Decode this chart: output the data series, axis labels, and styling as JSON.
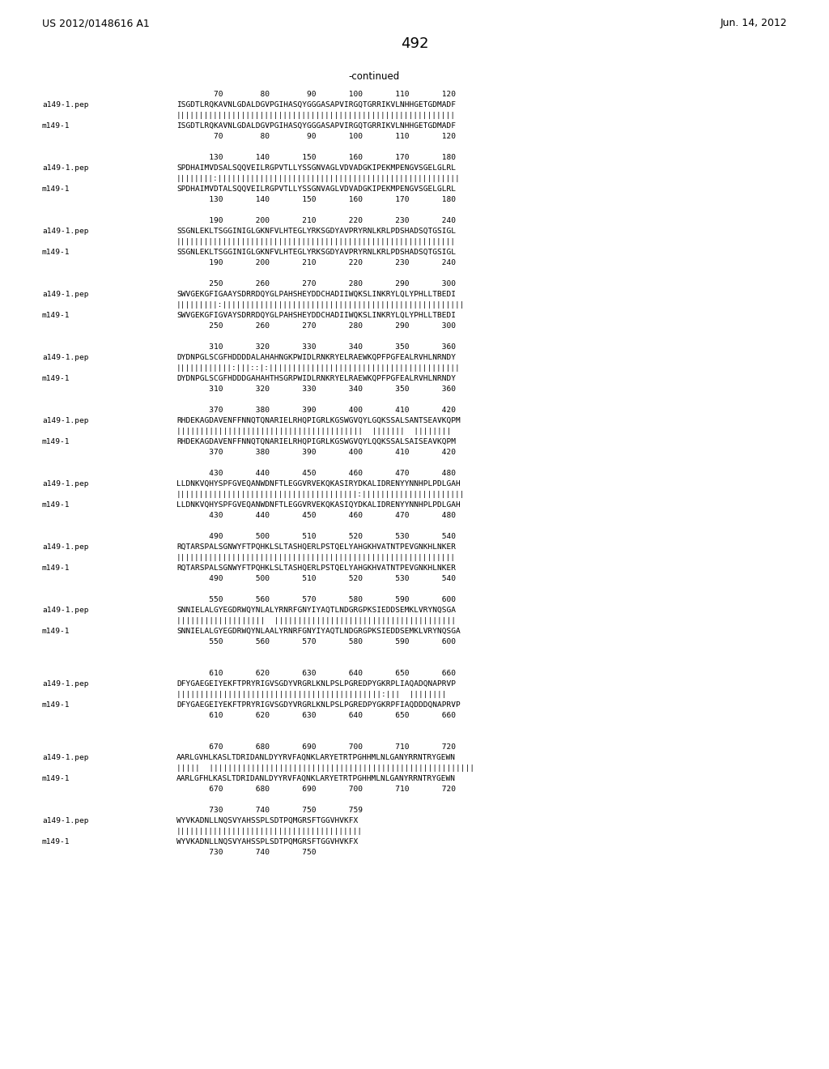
{
  "title_left": "US 2012/0148616 A1",
  "title_right": "Jun. 14, 2012",
  "page_number": "492",
  "continued_label": "-continued",
  "background_color": "#ffffff",
  "text_color": "#000000",
  "blocks": [
    {
      "numbers_top": "        70        80        90       100       110       120",
      "seq1_label": "a149-1.pep",
      "seq1": "ISGDTLRQKAVNLGDALDGVPGIHASQYGGGASAPVIRGQTGRRIKVLNHHGETGDMADF",
      "match": "||||||||||||||||||||||||||||||||||||||||||||||||||||||||||||",
      "seq2_label": "m149-1",
      "seq2": "ISGDTLRQKAVNLGDALDGVPGIHASQYGGGASAPVIRGQTGRRIKVLNHHGETGDMADF",
      "numbers_bot": "        70        80        90       100       110       120",
      "extra_space_after": false
    },
    {
      "numbers_top": "       130       140       150       160       170       180",
      "seq1_label": "a149-1.pep",
      "seq1": "SPDHAIMVDSALSQQVEILRGPVTLLYSSGNVAGLVDVADGKIPEKMPENGVSGELGLRL",
      "match": "||||||||:||||||||||||||||||||||||||||||||||||||||||||||||||||",
      "seq2_label": "m149-1",
      "seq2": "SPDHAIMVDTALSQQVEILRGPVTLLYSSGNVAGLVDVADGKIPEKMPENGVSGELGLRL",
      "numbers_bot": "       130       140       150       160       170       180",
      "extra_space_after": false
    },
    {
      "numbers_top": "       190       200       210       220       230       240",
      "seq1_label": "a149-1.pep",
      "seq1": "SSGNLEKLTSGGINIGLGKNFVLHTEGLYRKSGDYAVPRYRNLKRLPDSHADSQTGSIGL",
      "match": "||||||||||||||||||||||||||||||||||||||||||||||||||||||||||||",
      "seq2_label": "m149-1",
      "seq2": "SSGNLEKLTSGGINIGLGKNFVLHTEGLYRKSGDYAVPRYRNLKRLPDSHADSQTGSIGL",
      "numbers_bot": "       190       200       210       220       230       240",
      "extra_space_after": false
    },
    {
      "numbers_top": "       250       260       270       280       290       300",
      "seq1_label": "a149-1.pep",
      "seq1": "SWVGEKGFIGAAYSDRRDQYGLPAHSHEYDDCHADIIWQKSLINKRYLQLYPHLLTBEDI",
      "match": "|||||||||:||||||||||||||||||||||||||||||||||||||||||||||||||||",
      "seq2_label": "m149-1",
      "seq2": "SWVGEKGFIGVAYSDRRDQYGLPAHSHEYDDCHADIIWQKSLINKRYLQLYPHLLTBEDI",
      "numbers_bot": "       250       260       270       280       290       300",
      "extra_space_after": false
    },
    {
      "numbers_top": "       310       320       330       340       350       360",
      "seq1_label": "a149-1.pep",
      "seq1": "DYDNPGLSCGFHDDDDALAHAHNGKPWIDLRNKRYELRAEWKQPFPGFEALRVHLNRNDY",
      "match": "||||||||||||:|||::|:|||||||||||||||||||||||||||||||||||||||||",
      "seq2_label": "m149-1",
      "seq2": "DYDNPGLSCGFHDDDGAHAHTHSGRPWIDLRNKRYELRAEWKQPFPGFEALRVHLNRNDY",
      "numbers_bot": "       310       320       330       340       350       360",
      "extra_space_after": false
    },
    {
      "numbers_top": "       370       380       390       400       410       420",
      "seq1_label": "a149-1.pep",
      "seq1": "RHDEKAGDAVENFFNNQTQNARIELRHQPIGRLKGSWGVQYLGQKSSALSANTSEAVKQPM",
      "match": "||||||||||||||||||||||||||||||||||||||||  |||||||  ||||||||",
      "seq2_label": "m149-1",
      "seq2": "RHDEKAGDAVENFFNNQTQNARIELRHQPIGRLKGSWGVQYLQQKSSALSAISEAVKQPM",
      "numbers_bot": "       370       380       390       400       410       420",
      "extra_space_after": false
    },
    {
      "numbers_top": "       430       440       450       460       470       480",
      "seq1_label": "a149-1.pep",
      "seq1": "LLDNKVQHYSPFGVEQANWDNFTLEGGVRVEKQKASIRYDKALIDRENYYNNHPLPDLGAH",
      "match": "|||||||||||||||||||||||||||||||||||||||:||||||||||||||||||||||",
      "seq2_label": "m149-1",
      "seq2": "LLDNKVQHYSPFGVEQANWDNFTLEGGVRVEKQKASIQYDKALIDRENYYNNHPLPDLGAH",
      "numbers_bot": "       430       440       450       460       470       480",
      "extra_space_after": false
    },
    {
      "numbers_top": "       490       500       510       520       530       540",
      "seq1_label": "a149-1.pep",
      "seq1": "RQTARSPALSGNWYFTPQHKLSLTASHQERLPSTQELYAHGKHVATNTPEVGNKHLNKER",
      "match": "||||||||||||||||||||||||||||||||||||||||||||||||||||||||||||",
      "seq2_label": "m149-1",
      "seq2": "RQTARSPALSGNWYFTPQHKLSLTASHQERLPSTQELYAHGKHVATNTPEVGNKHLNKER",
      "numbers_bot": "       490       500       510       520       530       540",
      "extra_space_after": false
    },
    {
      "numbers_top": "       550       560       570       580       590       600",
      "seq1_label": "a149-1.pep",
      "seq1": "SNNIELALGYEGDRWQYNLALYRNRFGNYIYAQTLNDGRGPKSIEDDSEMKLVRYNQSGA",
      "match": "|||||||||||||||||||  |||||||||||||||||||||||||||||||||||||||",
      "seq2_label": "m149-1",
      "seq2": "SNNIELALGYEGDRWQYNLAALYRNRFGNYIYAQTLNDGRGPKSIEDDSEMKLVRYNQSGA",
      "numbers_bot": "       550       560       570       580       590       600",
      "extra_space_after": true
    },
    {
      "numbers_top": "       610       620       630       640       650       660",
      "seq1_label": "a149-1.pep",
      "seq1": "DFYGAEGEIYEKFTPRYRIGVSGDYVRGRLKNLPSLPGREDPYGKRPLIAQADQNAPRVP",
      "match": "||||||||||||||||||||||||||||||||||||||||||||:|||  ||||||||",
      "seq2_label": "m149-1",
      "seq2": "DFYGAEGEIYEKFTPRYRIGVSGDYVRGRLKNLPSLPGREDPYGKRPFIAQDDDQNAPRVP",
      "numbers_bot": "       610       620       630       640       650       660",
      "extra_space_after": true
    },
    {
      "numbers_top": "       670       680       690       700       710       720",
      "seq1_label": "a149-1.pep",
      "seq1": "AARLGVHLKASLTDRIDANLDYYRVFAQNKLARYETRTPGHHMLNLGANYRRNTRYGEWN",
      "match": "|||||  |||||||||||||||||||||||||||||||||||||||||||||||||||||||||",
      "seq2_label": "m149-1",
      "seq2": "AARLGFHLKASLTDRIDANLDYYRVFAQNKLARYETRTPGHHMLNLGANYRRNTRYGEWN",
      "numbers_bot": "       670       680       690       700       710       720",
      "extra_space_after": false
    },
    {
      "numbers_top": "       730       740       750       759",
      "seq1_label": "a149-1.pep",
      "seq1": "WYVKADNLLNQSVYAHSSPLSDTPQMGRSFTGGVHVKFX",
      "match": "||||||||||||||||||||||||||||||||||||||||",
      "seq2_label": "m149-1",
      "seq2": "WYVKADNLLNQSVYAHSSPLSDTPQMGRSFTGGVHVKFX",
      "numbers_bot": "       730       740       750",
      "extra_space_after": false
    }
  ]
}
